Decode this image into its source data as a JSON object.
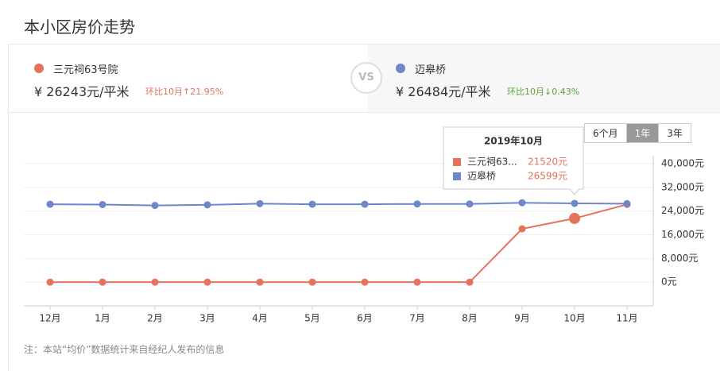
{
  "page_title": "本小区房价走势",
  "compare": {
    "items": [
      {
        "name": "三元祠63号院",
        "price": "¥ 26243元/平米",
        "change": "环比10月↑21.95%"
      },
      {
        "name": "迈皋桥",
        "price": "¥ 26484元/平米",
        "change": "环比10月↓0.43%"
      }
    ],
    "vs": "VS"
  },
  "ranges": {
    "options": [
      "6个月",
      "1年",
      "3年"
    ],
    "active": 1
  },
  "footnote": "注：本站“均价”数据统计来自经纪人发布的信息",
  "chart_data": {
    "type": "line",
    "categories": [
      "12月",
      "1月",
      "2月",
      "3月",
      "4月",
      "5月",
      "6月",
      "7月",
      "8月",
      "9月",
      "10月",
      "11月"
    ],
    "series": [
      {
        "name": "三元祠63号院",
        "color": "#e5735c",
        "values": [
          0,
          0,
          0,
          0,
          0,
          0,
          0,
          0,
          0,
          18000,
          21520,
          26243
        ],
        "value_labels": [
          null,
          null,
          null,
          null,
          null,
          null,
          null,
          null,
          null,
          null,
          "21520元",
          null
        ]
      },
      {
        "name": "迈皋桥",
        "color": "#6d87c9",
        "values": [
          26300,
          26200,
          25900,
          26100,
          26500,
          26300,
          26300,
          26400,
          26400,
          26800,
          26599,
          26484
        ],
        "value_labels": [
          null,
          null,
          null,
          null,
          null,
          null,
          null,
          null,
          null,
          null,
          "26599元",
          null
        ]
      }
    ],
    "ylim": [
      -8000,
      40000
    ],
    "yticks": [
      {
        "value": 0,
        "label": "0元"
      },
      {
        "value": 8000,
        "label": "8,000元"
      },
      {
        "value": 16000,
        "label": "16,000元"
      },
      {
        "value": 24000,
        "label": "24,000元"
      },
      {
        "value": 32000,
        "label": "32,000元"
      },
      {
        "value": 40000,
        "label": "40,000元"
      }
    ],
    "grid": true,
    "tooltip": {
      "title": "2019年10月",
      "index": 10,
      "names": [
        "三元祠63...",
        "迈皋桥"
      ]
    }
  }
}
